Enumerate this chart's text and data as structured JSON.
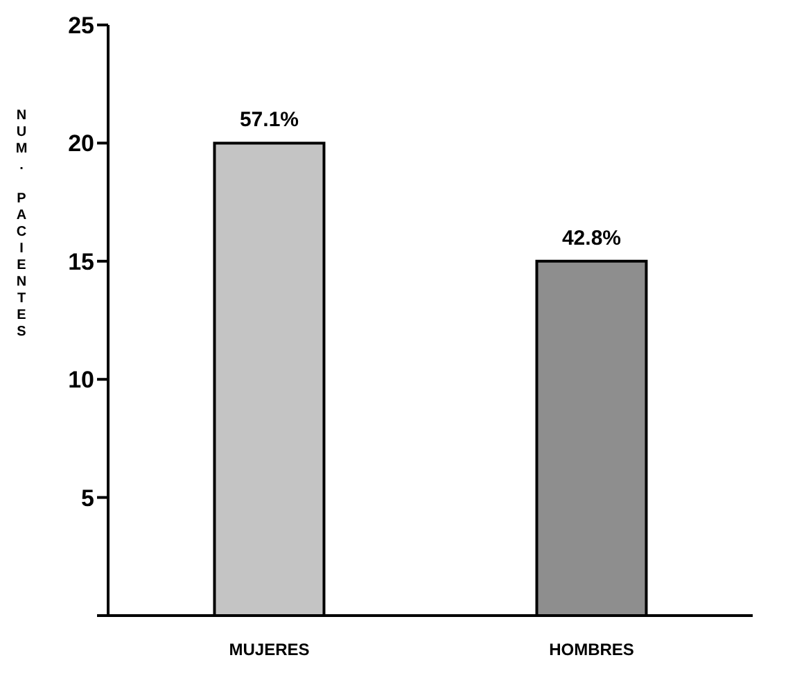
{
  "chart_data": {
    "type": "bar",
    "ylabel": "NUM. PACIENTES",
    "categories": [
      "MUJERES",
      "HOMBRES"
    ],
    "values": [
      20,
      15
    ],
    "colors": [
      "#c4c4c4",
      "#8e8e8e"
    ],
    "annotations": [
      {
        "text": "57.1%",
        "x": "MUJERES",
        "y": 20
      },
      {
        "text": "42.8%",
        "x": "HOMBRES",
        "y": 15
      }
    ],
    "ylim": [
      0,
      25
    ],
    "yticks": [
      {
        "value": 0,
        "label": null
      },
      5,
      10,
      15,
      20,
      25
    ],
    "grid": false
  }
}
